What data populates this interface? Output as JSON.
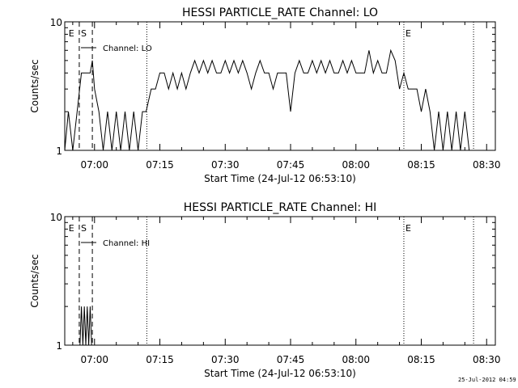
{
  "footer": {
    "timestamp": "25-Jul-2012 04:59"
  },
  "chart_data": [
    {
      "type": "line",
      "title": "HESSI PARTICLE_RATE Channel: LO",
      "xlabel": "Start Time (24-Jul-12 06:53:10)",
      "ylabel": "Counts/sec",
      "yscale": "log",
      "xlim": [
        "06:53:10",
        "08:32:00"
      ],
      "ylim": [
        1,
        10
      ],
      "xticks": [
        "07:00",
        "07:15",
        "07:30",
        "07:45",
        "08:00",
        "08:15",
        "08:30"
      ],
      "yticks": [
        "1",
        "10"
      ],
      "legend": {
        "label": "Channel: LO",
        "placement": "top-left"
      },
      "markers": [
        {
          "label": "E",
          "time": "06:53:40",
          "style": "none"
        },
        {
          "label": "S",
          "time": "06:56:30",
          "style": "dashed"
        },
        {
          "label": "",
          "time": "06:59:30",
          "style": "dashed"
        },
        {
          "label": "",
          "time": "07:12:00",
          "style": "dotted"
        },
        {
          "label": "E",
          "time": "08:11:00",
          "style": "dotted"
        },
        {
          "label": "",
          "time": "08:27:00",
          "style": "dotted"
        }
      ],
      "x": [
        "06:53:10",
        "06:54:00",
        "06:55:00",
        "06:56:00",
        "06:57:00",
        "06:58:00",
        "06:59:00",
        "06:59:30",
        "07:00:00",
        "07:01:00",
        "07:02:00",
        "07:03:00",
        "07:04:00",
        "07:05:00",
        "07:06:00",
        "07:07:00",
        "07:08:00",
        "07:09:00",
        "07:10:00",
        "07:11:00",
        "07:11:50",
        "07:13:00",
        "07:14:00",
        "07:15:00",
        "07:16:00",
        "07:17:00",
        "07:18:00",
        "07:19:00",
        "07:20:00",
        "07:21:00",
        "07:22:00",
        "07:23:00",
        "07:24:00",
        "07:25:00",
        "07:26:00",
        "07:27:00",
        "07:28:00",
        "07:29:00",
        "07:30:00",
        "07:31:00",
        "07:32:00",
        "07:33:00",
        "07:34:00",
        "07:35:00",
        "07:36:00",
        "07:37:00",
        "07:38:00",
        "07:39:00",
        "07:40:00",
        "07:41:00",
        "07:42:00",
        "07:43:00",
        "07:44:00",
        "07:45:00",
        "07:46:00",
        "07:47:00",
        "07:48:00",
        "07:49:00",
        "07:50:00",
        "07:51:00",
        "07:52:00",
        "07:53:00",
        "07:54:00",
        "07:55:00",
        "07:56:00",
        "07:57:00",
        "07:58:00",
        "07:59:00",
        "08:00:00",
        "08:01:00",
        "08:02:00",
        "08:03:00",
        "08:04:00",
        "08:05:00",
        "08:06:00",
        "08:07:00",
        "08:08:00",
        "08:09:00",
        "08:10:00",
        "08:11:00",
        "08:12:00",
        "08:13:00",
        "08:14:00",
        "08:15:00",
        "08:16:00",
        "08:17:00",
        "08:18:00",
        "08:19:00",
        "08:20:00",
        "08:21:00",
        "08:22:00",
        "08:23:00",
        "08:24:00",
        "08:25:00",
        "08:26:00",
        "08:27:00"
      ],
      "y": [
        1,
        2,
        1,
        2,
        4,
        4,
        4,
        5,
        3,
        2,
        1,
        2,
        1,
        2,
        1,
        2,
        1,
        2,
        1,
        2,
        2,
        3,
        3,
        4,
        4,
        3,
        4,
        3,
        4,
        3,
        4,
        5,
        4,
        5,
        4,
        5,
        4,
        4,
        5,
        4,
        5,
        4,
        5,
        4,
        3,
        4,
        5,
        4,
        4,
        3,
        4,
        4,
        4,
        2,
        4,
        5,
        4,
        4,
        5,
        4,
        5,
        4,
        5,
        4,
        4,
        5,
        4,
        5,
        4,
        4,
        4,
        6,
        4,
        5,
        4,
        4,
        6,
        5,
        3,
        4,
        3,
        3,
        3,
        2,
        3,
        2,
        1,
        2,
        1,
        2,
        1,
        2,
        1,
        2,
        1,
        1
      ]
    },
    {
      "type": "line",
      "title": "HESSI PARTICLE_RATE Channel: HI",
      "xlabel": "Start Time (24-Jul-12 06:53:10)",
      "ylabel": "Counts/sec",
      "yscale": "log",
      "xlim": [
        "06:53:10",
        "08:32:00"
      ],
      "ylim": [
        1,
        10
      ],
      "xticks": [
        "07:00",
        "07:15",
        "07:30",
        "07:45",
        "08:00",
        "08:15",
        "08:30"
      ],
      "yticks": [
        "1",
        "10"
      ],
      "legend": {
        "label": "Channel: HI",
        "placement": "top-left"
      },
      "markers": [
        {
          "label": "E",
          "time": "06:53:40",
          "style": "none"
        },
        {
          "label": "S",
          "time": "06:56:30",
          "style": "dashed"
        },
        {
          "label": "",
          "time": "06:59:30",
          "style": "dashed"
        },
        {
          "label": "",
          "time": "07:12:00",
          "style": "dotted"
        },
        {
          "label": "E",
          "time": "08:11:00",
          "style": "dotted"
        },
        {
          "label": "",
          "time": "08:27:00",
          "style": "dotted"
        }
      ],
      "x": [
        "06:56:40",
        "06:57:00",
        "06:57:20",
        "06:57:40",
        "06:58:00",
        "06:58:20",
        "06:58:40",
        "06:59:00",
        "06:59:20"
      ],
      "y": [
        1,
        2,
        1,
        2,
        1,
        2,
        1,
        2,
        1
      ]
    }
  ]
}
